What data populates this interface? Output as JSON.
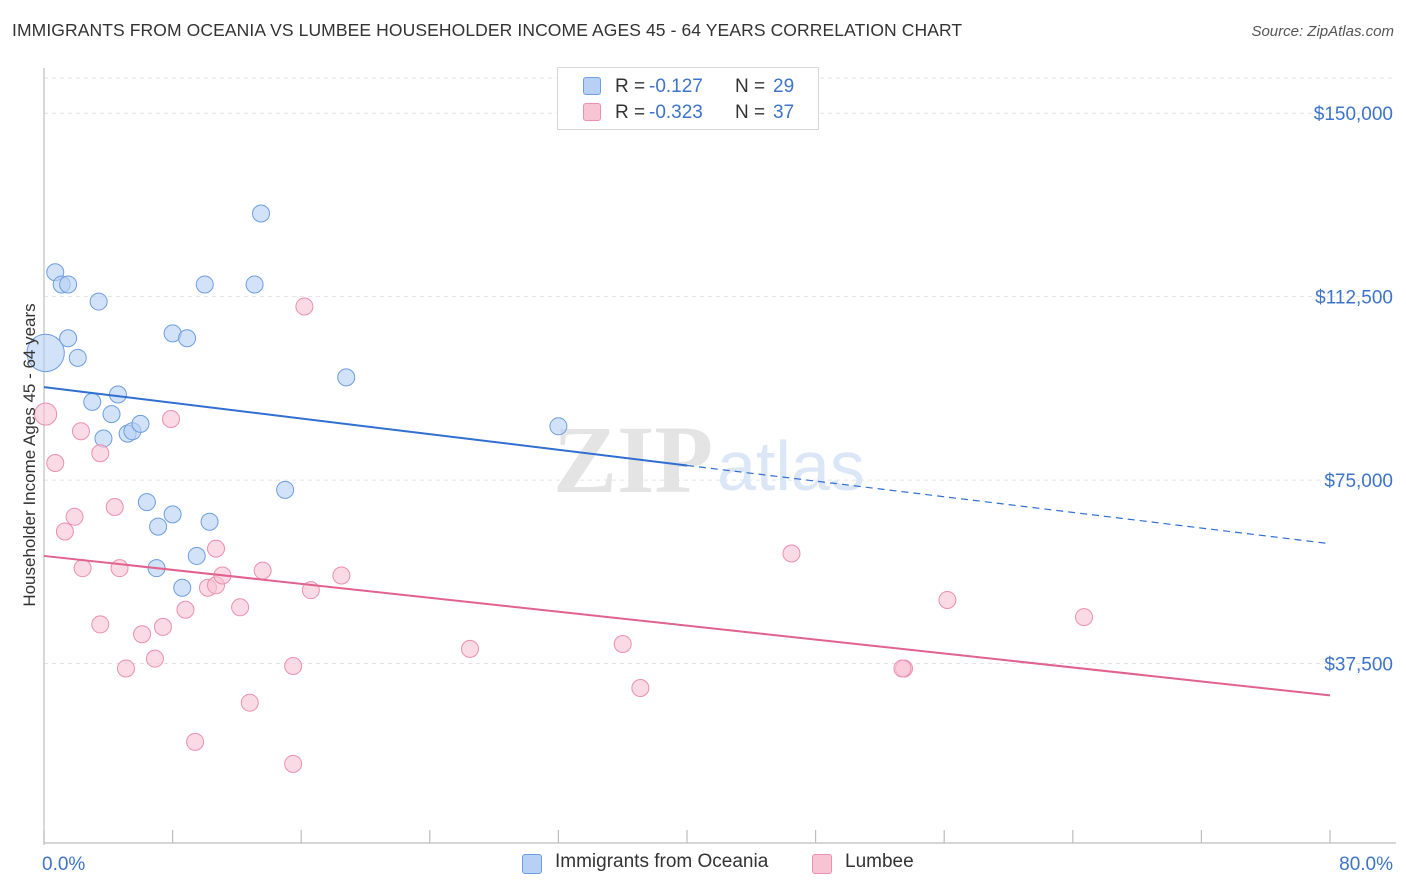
{
  "header": {
    "title": "IMMIGRANTS FROM OCEANIA VS LUMBEE HOUSEHOLDER INCOME AGES 45 - 64 YEARS CORRELATION CHART",
    "source": "Source: ZipAtlas.com"
  },
  "watermark": {
    "zip": "ZIP",
    "atlas": "atlas"
  },
  "legend": {
    "rows": [
      {
        "r_label": "R =",
        "r_value": "-0.127",
        "n_label": "N =",
        "n_value": "29",
        "color": "#b7d0f3"
      },
      {
        "r_label": "R =",
        "r_value": "-0.323",
        "n_label": "N =",
        "n_value": "37",
        "color": "#f7c4d4"
      }
    ]
  },
  "bottom_legend": [
    {
      "label": "Immigrants from Oceania",
      "color": "#b7d0f3"
    },
    {
      "label": "Lumbee",
      "color": "#f7c4d4"
    }
  ],
  "chart_data": {
    "type": "scatter",
    "title": "IMMIGRANTS FROM OCEANIA VS LUMBEE HOUSEHOLDER INCOME AGES 45 - 64 YEARS CORRELATION CHART",
    "xlabel": "",
    "ylabel": "Householder Income Ages 45 - 64 years",
    "xlim": [
      0,
      80
    ],
    "ylim": [
      0,
      157000
    ],
    "x_tick_labels": [
      "0.0%",
      "80.0%"
    ],
    "y_ticks": [
      37500,
      75000,
      112500,
      150000
    ],
    "y_tick_labels": [
      "$37,500",
      "$75,000",
      "$112,500",
      "$150,000"
    ],
    "grid": true,
    "legend_position": "top-center",
    "series": [
      {
        "name": "Immigrants from Oceania",
        "color": "#6d9ee0",
        "fill": "#b7d0f3",
        "line_color": "#2f6fd1",
        "points": [
          [
            0.1,
            101000,
            2.2
          ],
          [
            0.7,
            117500,
            1
          ],
          [
            1.1,
            115000,
            1
          ],
          [
            1.5,
            115000,
            1
          ],
          [
            1.5,
            104000,
            1
          ],
          [
            3.4,
            111500,
            1
          ],
          [
            2.1,
            100000,
            1
          ],
          [
            3.0,
            91000,
            1
          ],
          [
            4.6,
            92500,
            1
          ],
          [
            4.2,
            88500,
            1
          ],
          [
            3.7,
            83500,
            1
          ],
          [
            5.2,
            84500,
            1
          ],
          [
            5.5,
            85000,
            1
          ],
          [
            6.0,
            86500,
            1
          ],
          [
            8.0,
            105000,
            1
          ],
          [
            8.9,
            104000,
            1
          ],
          [
            10.0,
            115000,
            1
          ],
          [
            13.1,
            115000,
            1
          ],
          [
            13.5,
            129500,
            1
          ],
          [
            18.8,
            96000,
            1
          ],
          [
            15.0,
            73000,
            1
          ],
          [
            6.4,
            70500,
            1
          ],
          [
            7.1,
            65500,
            1
          ],
          [
            8.0,
            68000,
            1
          ],
          [
            10.3,
            66500,
            1
          ],
          [
            7.0,
            57000,
            1
          ],
          [
            9.5,
            59500,
            1
          ],
          [
            8.6,
            53000,
            1
          ],
          [
            32.0,
            86000,
            1
          ]
        ],
        "trend": {
          "x0": 0,
          "y0": 94000,
          "x1": 40,
          "y1": 78000,
          "x_dash_end": 80,
          "y_dash_end": 62000
        }
      },
      {
        "name": "Lumbee",
        "color": "#ec8fae",
        "fill": "#f7c4d4",
        "line_color": "#e0628d",
        "points": [
          [
            0.1,
            88500,
            1.3
          ],
          [
            0.7,
            78500,
            1
          ],
          [
            1.3,
            64500,
            1
          ],
          [
            1.9,
            67500,
            1
          ],
          [
            2.3,
            85000,
            1
          ],
          [
            2.4,
            57000,
            1
          ],
          [
            3.5,
            80500,
            1
          ],
          [
            3.5,
            45500,
            1
          ],
          [
            4.4,
            69500,
            1
          ],
          [
            4.7,
            57000,
            1
          ],
          [
            5.1,
            36500,
            1
          ],
          [
            6.1,
            43500,
            1
          ],
          [
            6.9,
            38500,
            1
          ],
          [
            7.4,
            45000,
            1
          ],
          [
            7.9,
            87500,
            1
          ],
          [
            8.8,
            48500,
            1
          ],
          [
            9.4,
            21500,
            1
          ],
          [
            10.2,
            53000,
            1
          ],
          [
            10.7,
            61000,
            1
          ],
          [
            10.7,
            53500,
            1
          ],
          [
            11.1,
            55500,
            1
          ],
          [
            12.2,
            49000,
            1
          ],
          [
            12.8,
            29500,
            1
          ],
          [
            13.6,
            56500,
            1
          ],
          [
            15.5,
            17000,
            1
          ],
          [
            15.5,
            37000,
            1
          ],
          [
            16.6,
            52500,
            1
          ],
          [
            16.2,
            110500,
            1
          ],
          [
            18.5,
            55500,
            1
          ],
          [
            26.5,
            40500,
            1
          ],
          [
            36.0,
            41500,
            1
          ],
          [
            37.1,
            32500,
            1
          ],
          [
            46.5,
            60000,
            1
          ],
          [
            53.5,
            36500,
            1
          ],
          [
            56.2,
            50500,
            1
          ],
          [
            64.7,
            47000,
            1
          ],
          [
            53.4,
            36500,
            1
          ]
        ],
        "trend": {
          "x0": 0,
          "y0": 59500,
          "x1": 80,
          "y1": 31000
        }
      }
    ]
  }
}
